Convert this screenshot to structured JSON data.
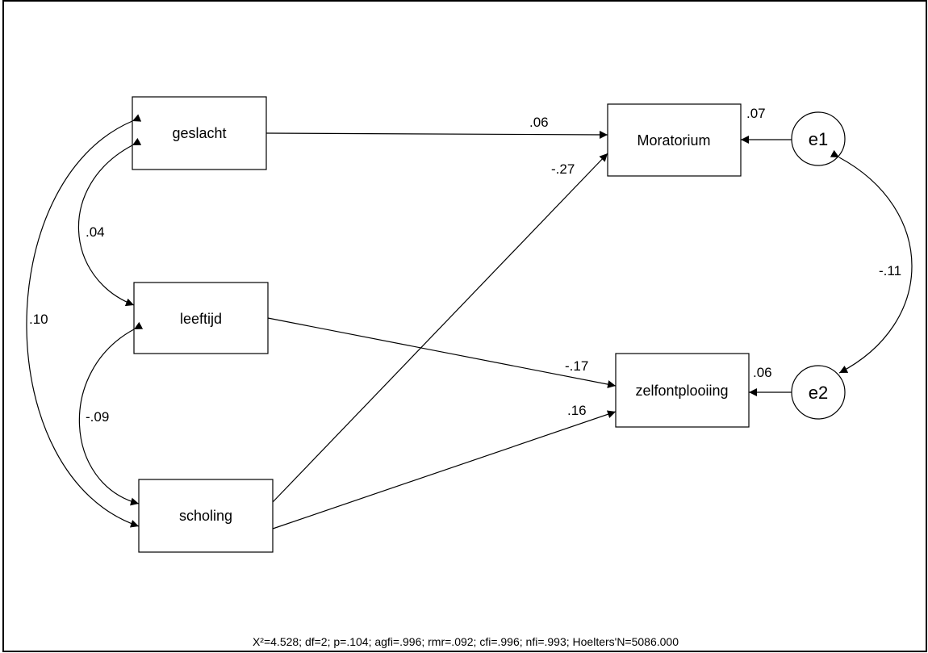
{
  "nodes": {
    "geslacht": "geslacht",
    "leeftijd": "leeftijd",
    "scholing": "scholing",
    "moratorium": "Moratorium",
    "zelfontplooiing": "zelfontplooiing",
    "e1": "e1",
    "e2": "e2"
  },
  "coefficients": {
    "geslacht_moratorium": ".06",
    "scholing_moratorium": "-.27",
    "leeftijd_zelfontplooiing": "-.17",
    "scholing_zelfontplooiing": ".16",
    "r2_moratorium": ".07",
    "r2_zelfontplooiing": ".06",
    "cov_geslacht_leeftijd": ".04",
    "cov_geslacht_scholing": ".10",
    "cov_leeftijd_scholing": "-.09",
    "cov_e1_e2": "-.11"
  },
  "fit_statistics": "X²=4.528; df=2; p=.104; agfi=.996; rmr=.092; cfi=.996; nfi=.993; Hoelters'N=5086.000"
}
